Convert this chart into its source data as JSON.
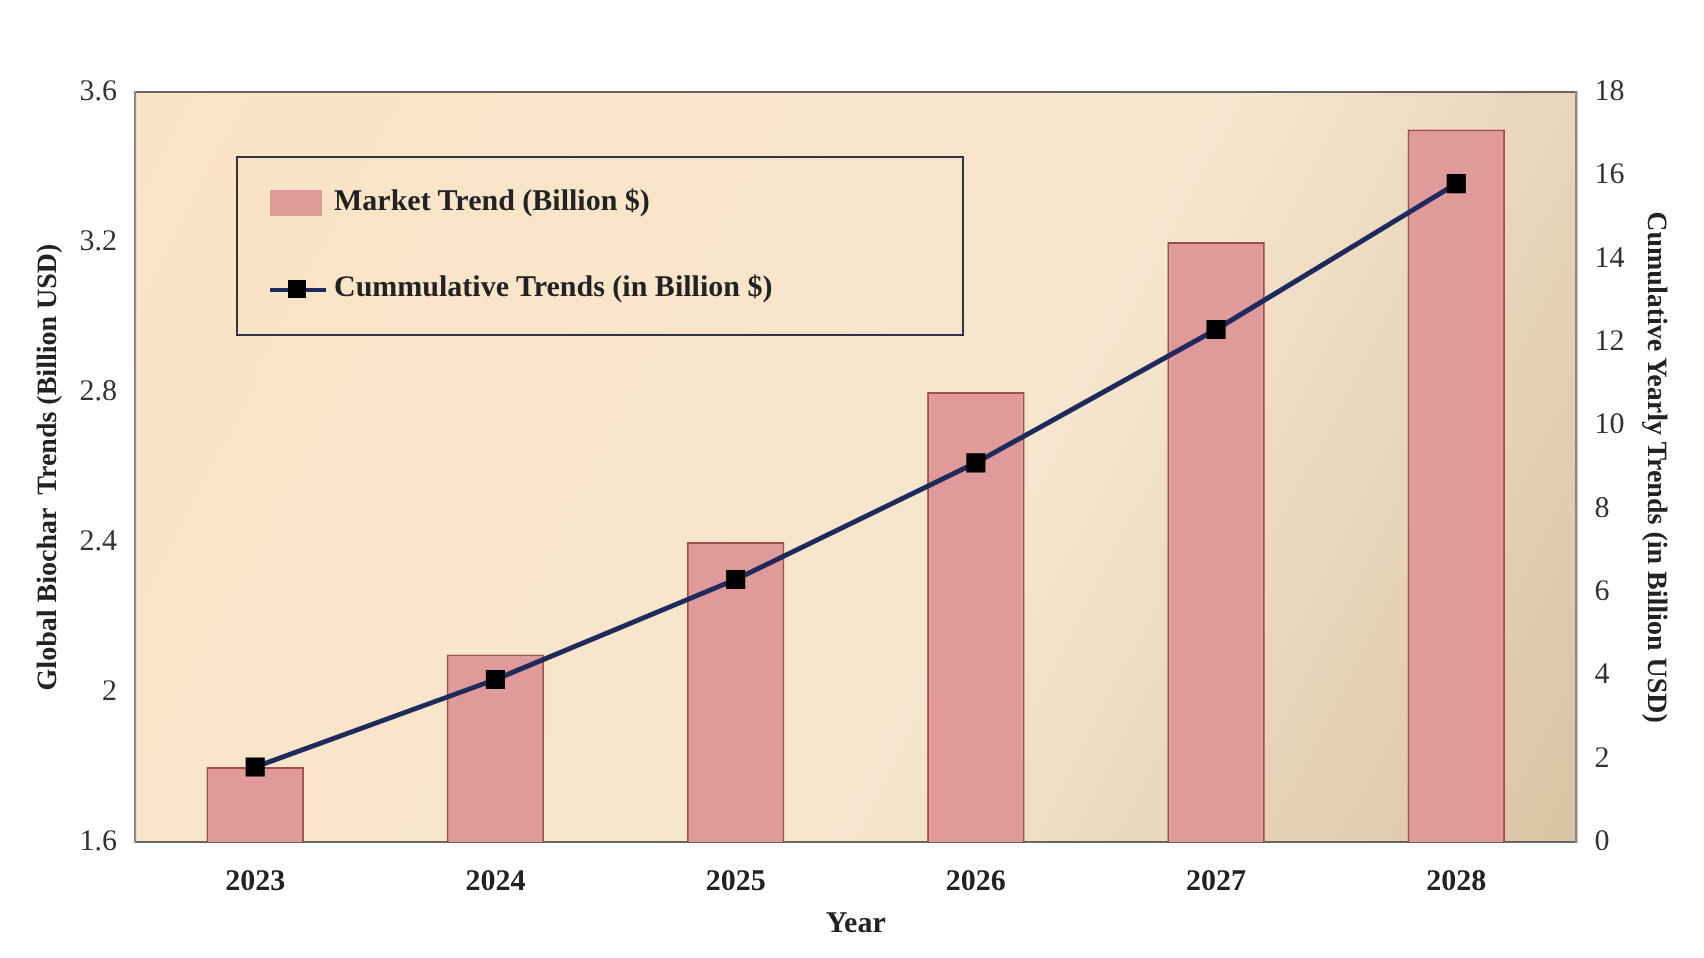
{
  "chart_data": {
    "type": "bar",
    "xlabel": "Year",
    "ylabel": "Global Biochar  Trends (Billion USD)",
    "y2label": "Cumulative Yearly Trends (in Billion USD)",
    "categories": [
      "2023",
      "2024",
      "2025",
      "2026",
      "2027",
      "2028"
    ],
    "series": [
      {
        "name": "Market Trend (Billion $)",
        "color": "#e09a9a",
        "values": [
          1.8,
          2.1,
          2.4,
          2.8,
          3.2,
          3.5
        ]
      },
      {
        "name": "Cummulative Trends (in Billion $)",
        "type": "line",
        "axis": "y2",
        "color": "#1f2a5c",
        "values": [
          1.8,
          3.9,
          6.3,
          9.1,
          12.3,
          15.8
        ]
      }
    ],
    "ylim": [
      1.6,
      3.6
    ],
    "yticks": [
      1.6,
      2,
      2.4,
      2.8,
      3.2,
      3.6
    ],
    "y2lim": [
      0,
      18
    ],
    "y2ticks": [
      0,
      2,
      4,
      6,
      8,
      10,
      12,
      14,
      16,
      18
    ],
    "legend": "top left",
    "marker": "square",
    "grid": false
  }
}
